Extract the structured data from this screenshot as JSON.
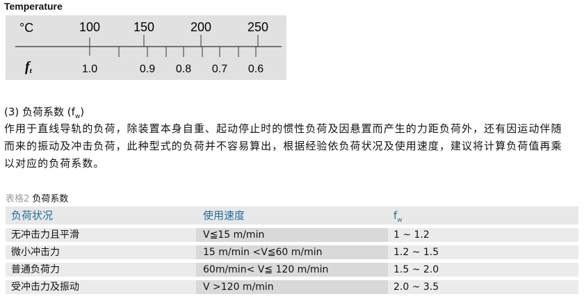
{
  "diagram": {
    "title": "Temperature",
    "temp_unit": "°C",
    "factor_label": "f",
    "factor_sub": "t",
    "temp_ticks": [
      "100",
      "150",
      "200",
      "250"
    ],
    "factor_ticks": [
      "1.0",
      "0.9",
      "0.8",
      "0.7",
      "0.6"
    ]
  },
  "section": {
    "title_prefix": "(3) 负荷系数 (f",
    "title_sub": "w",
    "title_suffix": ")",
    "paragraph_lines": [
      "作用于直线导轨的负荷，除装置本身自重、起动停止时的惯性负荷及因悬置而产生的力距负荷外，还有因运动伴随",
      "而来的振动及冲击负荷，此种型式的负荷并不容易算出，根据经验依负荷状况及使用速度，建议将计算负荷值再乘",
      "以对应的负荷系数。"
    ]
  },
  "table": {
    "caption_label": "表格2",
    "caption_title": "负荷系数",
    "headers": {
      "load": "负荷状况",
      "speed": "使用速度",
      "fw": "f",
      "fw_sub": "w"
    },
    "rows": [
      {
        "load": "无冲击力且平滑",
        "speed": "V≦15 m/min",
        "fw": "1  ~ 1.2"
      },
      {
        "load": "微小冲击力",
        "speed": "15 m/min <V≦60 m/min",
        "fw": "1.2 ~ 1.5"
      },
      {
        "load": "普通负荷力",
        "speed": "60m/min< V≦ 120 m/min",
        "fw": "1.5 ~ 2.0"
      },
      {
        "load": "受冲击力及振动",
        "speed": "V >120 m/min",
        "fw": "2.0 ~ 3.5"
      }
    ]
  }
}
